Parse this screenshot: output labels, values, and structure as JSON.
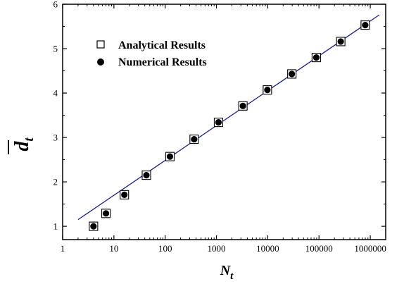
{
  "chart_data": {
    "type": "scatter",
    "xscale": "log",
    "xlim": [
      1,
      2000000
    ],
    "ylim": [
      0.7,
      6
    ],
    "x_ticks": [
      1,
      10,
      100,
      1000,
      10000,
      100000,
      1000000
    ],
    "x_tick_labels": [
      "1",
      "10",
      "100",
      "1000",
      "10000",
      "100000",
      "1000000"
    ],
    "y_ticks": [
      1,
      2,
      3,
      4,
      5,
      6
    ],
    "y_tick_labels": [
      "1",
      "2",
      "3",
      "4",
      "5",
      "6"
    ],
    "xlabel": {
      "main": "N",
      "sub": "t"
    },
    "ylabel": {
      "main": "d",
      "sub": "t",
      "overline": true
    },
    "grid": false,
    "legend_position": "upper-left",
    "series": [
      {
        "name": "Analytical Results",
        "marker": "open-square",
        "x": [
          4,
          7,
          16,
          43,
          124,
          367,
          1096,
          3283,
          9844,
          29527,
          88576,
          265723,
          797164
        ],
        "y": [
          1.0,
          1.29,
          1.71,
          2.15,
          2.57,
          2.96,
          3.34,
          3.71,
          4.07,
          4.43,
          4.8,
          5.16,
          5.53
        ]
      },
      {
        "name": "Numerical Results",
        "marker": "filled-circle",
        "x": [
          4,
          7,
          16,
          43,
          124,
          367,
          1096,
          3283,
          9844,
          29527,
          88576,
          265723,
          797164
        ],
        "y": [
          1.0,
          1.29,
          1.71,
          2.15,
          2.57,
          2.96,
          3.34,
          3.71,
          4.07,
          4.43,
          4.8,
          5.16,
          5.53
        ]
      }
    ],
    "fit_line": {
      "x": [
        2,
        1500000
      ],
      "y": [
        1.15,
        5.76
      ],
      "color": "#1c1c8c"
    },
    "colors": {
      "axis": "#000000",
      "markers": "#000000",
      "fit": "#1c1c8c"
    }
  }
}
